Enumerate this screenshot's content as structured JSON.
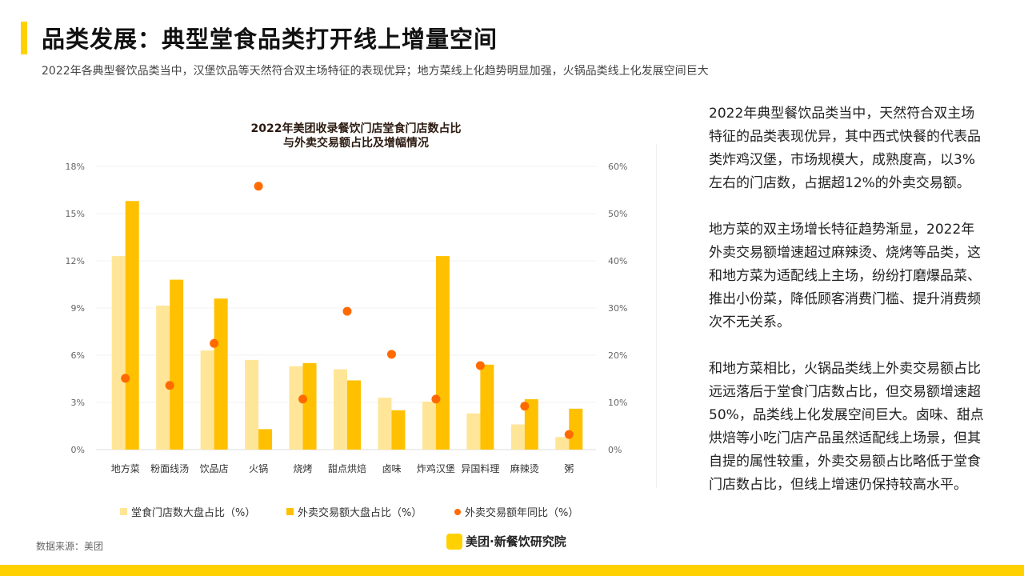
{
  "header": {
    "title": "品类发展：典型堂食品类打开线上增量空间",
    "subtitle": "2022年各典型餐饮品类当中，汉堡饮品等天然符合双主场特征的表现优异；地方菜线上化趋势明显加强，火锅品类线上化发展空间巨大"
  },
  "chart_data": {
    "type": "bar",
    "title_line1": "2022年美团收录餐饮门店堂食门店数占比",
    "title_line2": "与外卖交易额占比及增幅情况",
    "categories": [
      "地方菜",
      "粉面线汤",
      "饮品店",
      "火锅",
      "烧烤",
      "甜点烘焙",
      "卤味",
      "炸鸡汉堡",
      "异国料理",
      "麻辣烫",
      "粥"
    ],
    "series": [
      {
        "name": "堂食门店数大盘占比（%）",
        "type": "bar",
        "axis": "left",
        "color": "#FFE597",
        "values": [
          12.3,
          9.15,
          6.3,
          5.7,
          5.3,
          5.1,
          3.3,
          3.05,
          2.3,
          1.6,
          0.8
        ]
      },
      {
        "name": "外卖交易额大盘占比（%）",
        "type": "bar",
        "axis": "left",
        "color": "#FFC000",
        "values": [
          15.8,
          10.8,
          9.6,
          1.3,
          5.5,
          4.4,
          2.5,
          12.3,
          5.4,
          3.2,
          2.6
        ]
      },
      {
        "name": "外卖交易额年同比（%）",
        "type": "scatter",
        "axis": "right",
        "color": "#FF6A00",
        "values": [
          15.1,
          13.6,
          22.5,
          55.8,
          10.7,
          29.3,
          20.2,
          10.7,
          17.8,
          9.2,
          3.2
        ]
      }
    ],
    "ylim": [
      0,
      18
    ],
    "yticks": [
      "0%",
      "3%",
      "6%",
      "9%",
      "12%",
      "15%",
      "18%"
    ],
    "y2lim": [
      0,
      60
    ],
    "y2ticks": [
      "0%",
      "10%",
      "20%",
      "30%",
      "40%",
      "50%",
      "60%"
    ],
    "grid": true,
    "legend_position": "bottom"
  },
  "footer": {
    "source": "数据来源：美团",
    "logo_mark": "美团",
    "logo_text": "美团·新餐饮研究院"
  },
  "side_text": [
    "2022年典型餐饮品类当中，天然符合双主场特征的品类表现优异，其中西式快餐的代表品类炸鸡汉堡，市场规模大，成熟度高，以3%左右的门店数，占据超12%的外卖交易额。",
    "地方菜的双主场增长特征趋势渐显，2022年外卖交易额增速超过麻辣烫、烧烤等品类，这和地方菜为适配线上主场，纷纷打磨爆品菜、推出小份菜，降低顾客消费门槛、提升消费频次不无关系。",
    "和地方菜相比，火锅品类线上外卖交易额占比远远落后于堂食门店数占比，但交易额增速超50%，品类线上化发展空间巨大。卤味、甜点烘焙等小吃门店产品虽然适配线上场景，但其自提的属性较重，外卖交易额占比略低于堂食门店数占比，但线上增速仍保持较高水平。"
  ]
}
